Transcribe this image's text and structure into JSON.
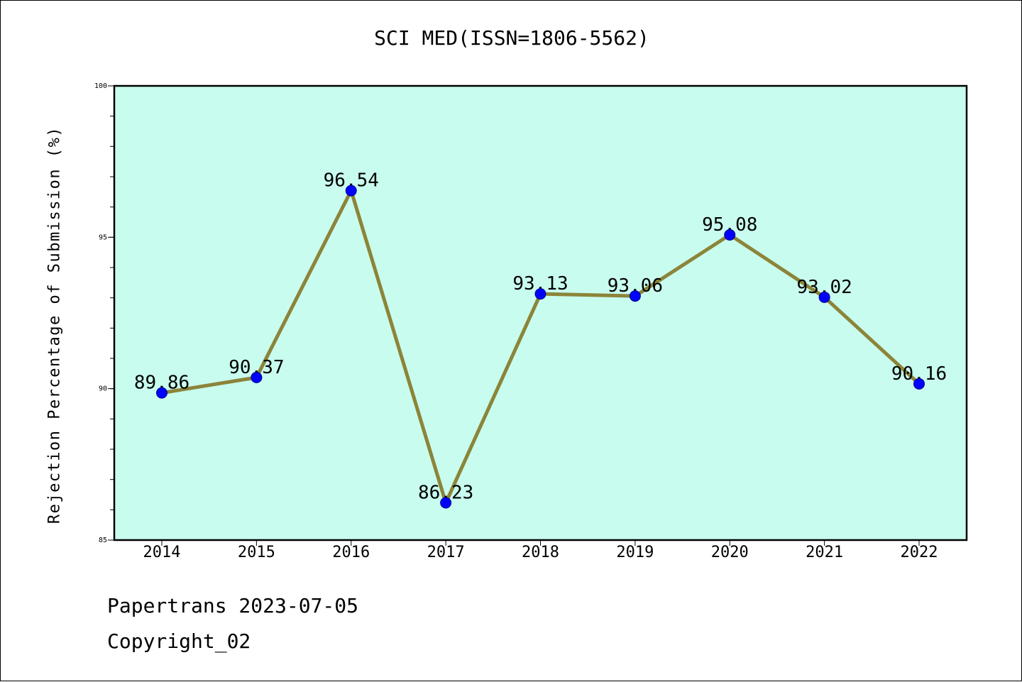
{
  "chart_data": {
    "type": "line",
    "title": "SCI MED(ISSN=1806-5562)",
    "ylabel": "Rejection Percentage of Submission (%)",
    "xlabel": "",
    "categories": [
      "2014",
      "2015",
      "2016",
      "2017",
      "2018",
      "2019",
      "2020",
      "2021",
      "2022"
    ],
    "values": [
      89.86,
      90.37,
      96.54,
      86.23,
      93.13,
      93.06,
      95.08,
      93.02,
      90.16
    ],
    "data_labels": [
      "89.86",
      "90.37",
      "96.54",
      "86.23",
      "93.13",
      "93.06",
      "95.08",
      "93.02",
      "90.16"
    ],
    "ylim": [
      85,
      100
    ],
    "yticks": [
      85,
      90,
      95,
      100
    ],
    "yticks_minor_step": 1,
    "grid": false,
    "colors": {
      "plot_background": "#c8fcee",
      "line": "#8c8439",
      "marker": "#0000ff"
    }
  },
  "footer": {
    "line1": "Papertrans 2023-07-05",
    "line2": "Copyright_02"
  }
}
